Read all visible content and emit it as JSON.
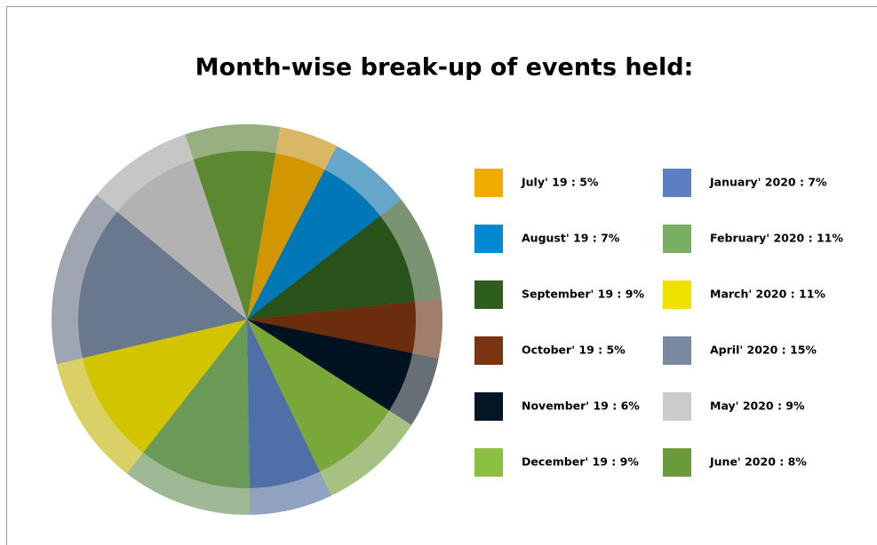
{
  "chart_data": {
    "type": "pie",
    "title": "Month-wise break-up of events held:",
    "categories": [
      "July' 19 : 5%",
      "August' 19 : 7%",
      "September' 19 : 9%",
      "October' 19 : 5%",
      "November' 19 : 6%",
      "December' 19 : 9%",
      "January' 2020 : 7%",
      "February' 2020 : 11%",
      "March' 2020 : 11%",
      "April' 2020 : 15%",
      "May' 2020 : 9%",
      "June' 2020 : 8%"
    ],
    "values": [
      5,
      7,
      9,
      5,
      6,
      9,
      7,
      11,
      11,
      15,
      9,
      8
    ],
    "colors": [
      "#f0ab00",
      "#0088d1",
      "#2e5e1e",
      "#7b3410",
      "#041525",
      "#8ac040",
      "#5b7fc0",
      "#7aaf63",
      "#f0e000",
      "#7889a0",
      "#cbcbcb",
      "#6a9b3a"
    ],
    "legend": "right"
  }
}
